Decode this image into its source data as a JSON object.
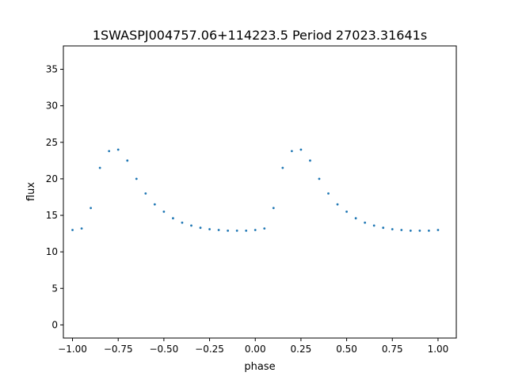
{
  "chart_data": {
    "type": "scatter",
    "title": "1SWASPJ004757.06+114223.5 Period 27023.31641s",
    "xlabel": "phase",
    "ylabel": "flux",
    "xlim": [
      -1.05,
      1.1
    ],
    "ylim": [
      -1.8,
      38.2
    ],
    "xticks": [
      -1.0,
      -0.75,
      -0.5,
      -0.25,
      0.0,
      0.25,
      0.5,
      0.75,
      1.0
    ],
    "xtick_labels": [
      "−1.00",
      "−0.75",
      "−0.50",
      "−0.25",
      "0.00",
      "0.25",
      "0.50",
      "0.75",
      "1.00"
    ],
    "yticks": [
      0,
      5,
      10,
      15,
      20,
      25,
      30,
      35
    ],
    "ytick_labels": [
      "0",
      "5",
      "10",
      "15",
      "20",
      "25",
      "30",
      "35"
    ],
    "grid": false,
    "legend": "none",
    "marker_color": "#1f77b4",
    "series": [
      {
        "description": "folded light curve, repeated over two cycles (phase -1 to 1)",
        "x": [
          -1.0,
          -0.95,
          -0.9,
          -0.85,
          -0.8,
          -0.75,
          -0.7,
          -0.65,
          -0.6,
          -0.55,
          -0.5,
          -0.45,
          -0.4,
          -0.35,
          -0.3,
          -0.25,
          -0.2,
          -0.15,
          -0.1,
          -0.05,
          0.0,
          0.05,
          0.1,
          0.15,
          0.2,
          0.25,
          0.3,
          0.35,
          0.4,
          0.45,
          0.5,
          0.55,
          0.6,
          0.65,
          0.7,
          0.75,
          0.8,
          0.85,
          0.9,
          0.95,
          1.0
        ],
        "y": [
          13.0,
          13.2,
          16.0,
          21.5,
          23.8,
          24.0,
          22.5,
          20.0,
          18.0,
          16.5,
          15.5,
          14.6,
          14.0,
          13.6,
          13.3,
          13.1,
          13.0,
          12.9,
          12.9,
          12.9,
          13.0,
          13.2,
          16.0,
          21.5,
          23.8,
          24.0,
          22.5,
          20.0,
          18.0,
          16.5,
          15.5,
          14.6,
          14.0,
          13.6,
          13.3,
          13.1,
          13.0,
          12.9,
          12.9,
          12.9,
          13.0
        ]
      }
    ]
  }
}
